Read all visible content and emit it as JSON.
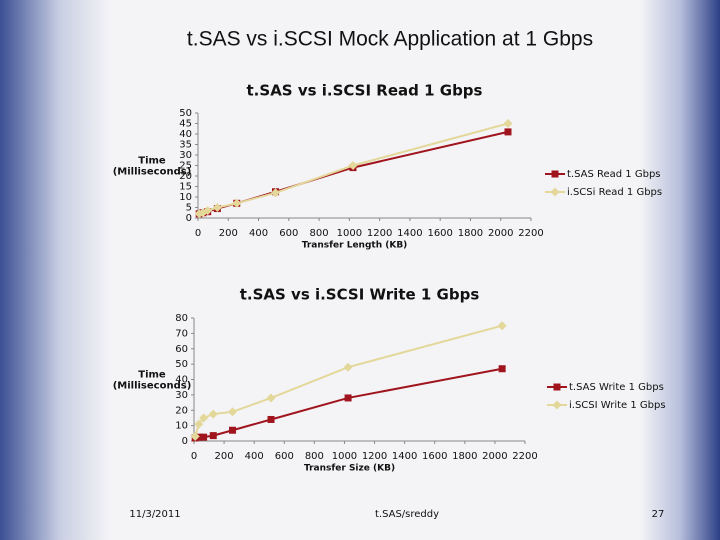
{
  "slide": {
    "title": "t.SAS vs i.SCSI Mock Application at 1 Gbps",
    "date": "11/3/2011",
    "footer": "t.SAS/sreddy",
    "page": "27"
  },
  "chart_data": [
    {
      "type": "line",
      "title": "t.SAS vs i.SCSI Read 1 Gbps",
      "xlabel": "Transfer Length (KB)",
      "ylabel": [
        "Time",
        "(Milliseconds)"
      ],
      "x": [
        8,
        32,
        64,
        128,
        256,
        512,
        1024,
        2048
      ],
      "series": [
        {
          "name": "t.SAS Read 1 Gbps",
          "color": "#a0141e",
          "marker": "square",
          "values": [
            2,
            2.5,
            3,
            4.5,
            7,
            12.5,
            24,
            41
          ]
        },
        {
          "name": "i.SCSi Read 1 Gbps",
          "color": "#e3d79a",
          "marker": "diamond",
          "values": [
            2,
            2.5,
            3.5,
            5,
            7,
            12,
            25,
            45
          ]
        }
      ],
      "xlim": [
        0,
        2200
      ],
      "xticks": [
        0,
        200,
        400,
        600,
        800,
        1000,
        1200,
        1400,
        1600,
        1800,
        2000,
        2200
      ],
      "ylim": [
        0,
        50
      ],
      "yticks": [
        0,
        5,
        10,
        15,
        20,
        25,
        30,
        35,
        40,
        45,
        50
      ],
      "grid": false,
      "legend": "right"
    },
    {
      "type": "line",
      "title": "t.SAS vs i.SCSI Write 1 Gbps",
      "xlabel": "Transfer Size (KB)",
      "ylabel": [
        "Time",
        "(Milliseconds)"
      ],
      "x": [
        8,
        32,
        64,
        128,
        256,
        512,
        1024,
        2048
      ],
      "series": [
        {
          "name": "t.SAS Write 1 Gbps",
          "color": "#a0141e",
          "marker": "square",
          "values": [
            2,
            2.5,
            2.5,
            3.5,
            7,
            14,
            28,
            47
          ]
        },
        {
          "name": "i.SCSI Write 1 Gbps",
          "color": "#e3d79a",
          "marker": "diamond",
          "values": [
            3,
            11,
            15,
            17.5,
            19,
            28,
            48,
            75
          ]
        }
      ],
      "xlim": [
        0,
        2200
      ],
      "xticks": [
        0,
        200,
        400,
        600,
        800,
        1000,
        1200,
        1400,
        1600,
        1800,
        2000,
        2200
      ],
      "ylim": [
        0,
        80
      ],
      "yticks": [
        0,
        10,
        20,
        30,
        40,
        50,
        60,
        70,
        80
      ],
      "grid": false,
      "legend": "right"
    }
  ]
}
